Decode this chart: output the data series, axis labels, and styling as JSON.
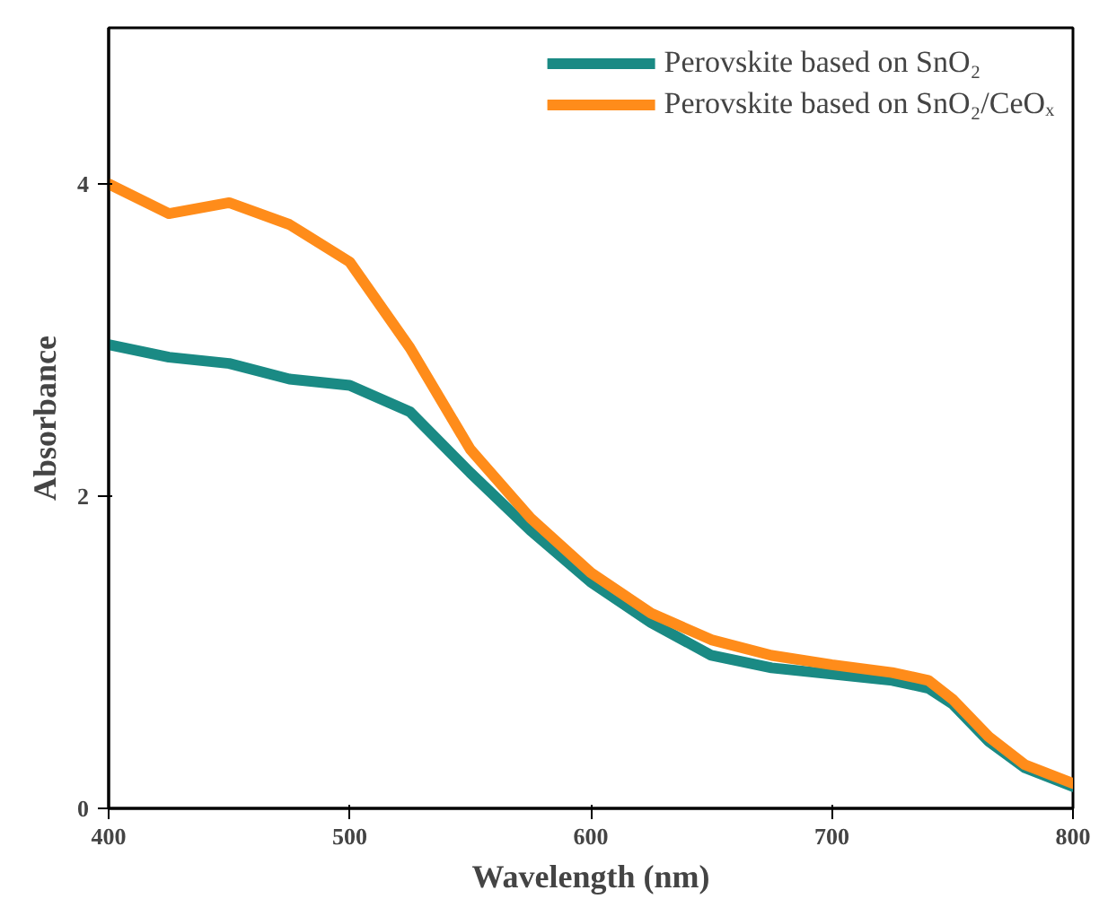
{
  "chart_data": {
    "type": "line",
    "xlabel": "Wavelength (nm)",
    "ylabel": "Absorbance",
    "x": [
      400,
      425,
      450,
      475,
      500,
      525,
      550,
      575,
      600,
      625,
      650,
      675,
      700,
      725,
      740,
      750,
      765,
      780,
      800
    ],
    "series": [
      {
        "name": "Perovskite based on SnO₂",
        "color": "#1a8a84",
        "values": [
          2.97,
          2.89,
          2.85,
          2.75,
          2.71,
          2.54,
          2.15,
          1.78,
          1.45,
          1.19,
          0.98,
          0.9,
          0.86,
          0.82,
          0.77,
          0.67,
          0.43,
          0.26,
          0.14
        ]
      },
      {
        "name": "Perovskite based on SnO₂/CeOₓ",
        "color": "#ff8c1a",
        "values": [
          4.0,
          3.81,
          3.88,
          3.74,
          3.5,
          2.95,
          2.3,
          1.86,
          1.51,
          1.25,
          1.08,
          0.98,
          0.92,
          0.87,
          0.82,
          0.7,
          0.46,
          0.28,
          0.16
        ]
      }
    ],
    "xlim": [
      400,
      800
    ],
    "xticks": [
      400,
      500,
      600,
      700,
      800
    ],
    "ylim": [
      0,
      5
    ],
    "yticks": [
      0,
      2,
      4
    ],
    "legend": "top right",
    "grid": false,
    "line_style": "solid"
  }
}
